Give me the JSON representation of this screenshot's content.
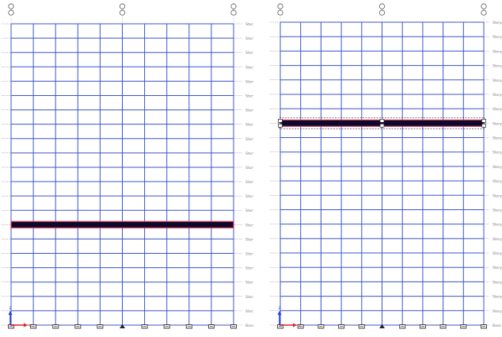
{
  "app": {
    "colors": {
      "grid": "#3b55c8",
      "level_line": "#9a9a9a",
      "label": "#7a7a7a",
      "beam_fill": "#0a0a2a",
      "beam_edge": "#e0305a",
      "axis_x": "#e02020",
      "axis_z": "#2040e0",
      "node": "#444444"
    }
  },
  "views": [
    {
      "name": "elevation-view-left",
      "bays": 10,
      "selected_story_label": "Story7",
      "axis_labels": {
        "x": "X",
        "z": "Z"
      },
      "grid_bubbles": [
        "1",
        "5",
        "9"
      ],
      "story_labels": [
        "Story21",
        "Story20",
        "Story19",
        "Story18",
        "Story17",
        "Story16",
        "Story15",
        "Story14",
        "Story13",
        "Story12",
        "Story11",
        "Story10",
        "Story9",
        "Story8",
        "Story7",
        "Story6",
        "Story5",
        "Story4",
        "Story3",
        "Story2",
        "Story1",
        "Base"
      ],
      "support_icons": [
        "fixed",
        "fixed",
        "fixed",
        "fixed",
        "fixed",
        "pinned",
        "fixed",
        "fixed",
        "fixed",
        "fixed",
        "fixed"
      ]
    },
    {
      "name": "elevation-view-right",
      "bays": 10,
      "selected_story_label": "Story14",
      "axis_labels": {
        "x": "X",
        "z": "Z"
      },
      "grid_bubbles": [
        "1",
        "5",
        "9"
      ],
      "story_labels": [
        "Story21",
        "Story20",
        "Story19",
        "Story18",
        "Story17",
        "Story16",
        "Story15",
        "Story14",
        "Story13",
        "Story12",
        "Story11",
        "Story10",
        "Story9",
        "Story8",
        "Story7",
        "Story6",
        "Story5",
        "Story4",
        "Story3",
        "Story2",
        "Story1",
        "Base"
      ],
      "support_icons": [
        "fixed",
        "fixed",
        "fixed",
        "fixed",
        "fixed",
        "pinned",
        "fixed",
        "fixed",
        "fixed",
        "fixed",
        "fixed"
      ]
    }
  ]
}
